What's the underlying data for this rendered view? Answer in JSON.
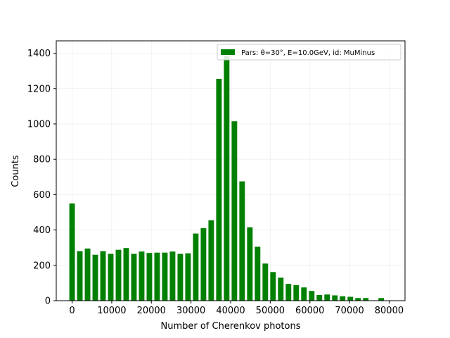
{
  "chart_data": {
    "type": "bar",
    "xlabel": "Number of Cherenkov photons",
    "ylabel": "Counts",
    "xlim": [
      -4000,
      84000
    ],
    "ylim": [
      0,
      1470
    ],
    "grid": true,
    "legend_position": "top-right",
    "x_ticks": [
      0,
      10000,
      20000,
      30000,
      40000,
      50000,
      60000,
      70000,
      80000
    ],
    "y_ticks": [
      0,
      200,
      400,
      600,
      800,
      1000,
      1200,
      1400
    ],
    "bin_width": 1400,
    "bar_color": "#008000",
    "series": [
      {
        "name": "Pars: θ=30°, E=10.0GeV, id: MuMinus",
        "x": [
          0,
          1950,
          3900,
          5850,
          7800,
          9750,
          11700,
          13650,
          15600,
          17550,
          19500,
          21450,
          23400,
          25350,
          27300,
          29250,
          31200,
          33150,
          35100,
          37050,
          39000,
          40950,
          42900,
          44850,
          46800,
          48750,
          50700,
          52650,
          54600,
          56550,
          58500,
          60450,
          62400,
          64350,
          66300,
          68250,
          70200,
          72150,
          74100,
          76050,
          78000
        ],
        "values": [
          550,
          280,
          295,
          260,
          280,
          265,
          288,
          298,
          265,
          278,
          270,
          272,
          272,
          278,
          265,
          268,
          380,
          410,
          455,
          1255,
          1385,
          1015,
          675,
          415,
          305,
          210,
          162,
          130,
          95,
          88,
          75,
          55,
          32,
          35,
          30,
          25,
          22,
          15,
          15,
          0,
          15
        ]
      }
    ]
  }
}
